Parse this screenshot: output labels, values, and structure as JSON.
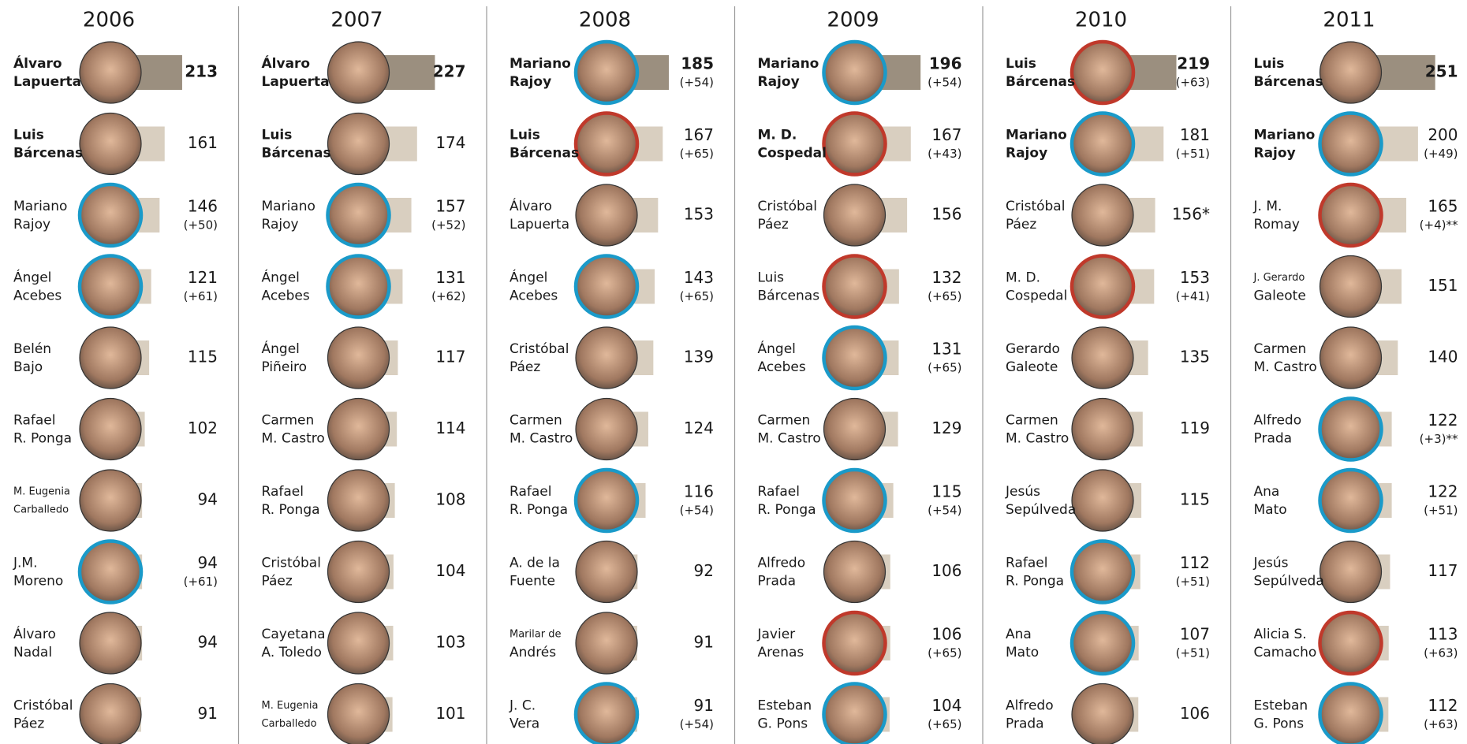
{
  "years": [
    {
      "year": "2006",
      "people": [
        {
          "name": [
            "Álvaro",
            "Lapuerta"
          ],
          "value": 213
        },
        {
          "name": [
            "Luis",
            "Bárcenas"
          ],
          "value": 161
        },
        {
          "name": [
            "Mariano",
            "Rajoy"
          ],
          "value": 146,
          "extra": "(+50)",
          "ring": "#1a9ac9"
        },
        {
          "name": [
            "Ángel",
            "Acebes"
          ],
          "value": 121,
          "extra": "(+61)",
          "ring": "#1a9ac9"
        },
        {
          "name": [
            "Belén",
            "Bajo"
          ],
          "value": 115
        },
        {
          "name": [
            "Rafael",
            "R. Ponga"
          ],
          "value": 102
        },
        {
          "name": [
            "M. Eugenia",
            "Carballedo"
          ],
          "value": 94
        },
        {
          "name": [
            "J.M.",
            "Moreno"
          ],
          "value": 94,
          "extra": "(+61)",
          "ring": "#1a9ac9"
        },
        {
          "name": [
            "Álvaro",
            "Nadal"
          ],
          "value": 94
        },
        {
          "name": [
            "Cristóbal",
            "Páez"
          ],
          "value": 91
        }
      ]
    },
    {
      "year": "2007",
      "people": [
        {
          "name": [
            "Álvaro",
            "Lapuerta"
          ],
          "value": 227
        },
        {
          "name": [
            "Luis",
            "Bárcenas"
          ],
          "value": 174
        },
        {
          "name": [
            "Mariano",
            "Rajoy"
          ],
          "value": 157,
          "extra": "(+52)",
          "ring": "#1a9ac9"
        },
        {
          "name": [
            "Ángel",
            "Acebes"
          ],
          "value": 131,
          "extra": "(+62)",
          "ring": "#1a9ac9"
        },
        {
          "name": [
            "Ángel",
            "Piñeiro"
          ],
          "value": 117
        },
        {
          "name": [
            "Carmen",
            "M. Castro"
          ],
          "value": 114
        },
        {
          "name": [
            "Rafael",
            "R. Ponga"
          ],
          "value": 108
        },
        {
          "name": [
            "Cristóbal",
            "Páez"
          ],
          "value": 104
        },
        {
          "name": [
            "Cayetana",
            "A. Toledo"
          ],
          "value": 103
        },
        {
          "name": [
            "M. Eugenia",
            "Carballedo"
          ],
          "value": 101
        }
      ]
    },
    {
      "year": "2008",
      "people": [
        {
          "name": [
            "Mariano",
            "Rajoy"
          ],
          "value": 185,
          "extra": "(+54)",
          "ring": "#1a9ac9"
        },
        {
          "name": [
            "Luis",
            "Bárcenas"
          ],
          "value": 167,
          "extra": "(+65)",
          "ring": "#c0392b"
        },
        {
          "name": [
            "Álvaro",
            "Lapuerta"
          ],
          "value": 153
        },
        {
          "name": [
            "Ángel",
            "Acebes"
          ],
          "value": 143,
          "extra": "(+65)",
          "ring": "#1a9ac9"
        },
        {
          "name": [
            "Cristóbal",
            "Páez"
          ],
          "value": 139
        },
        {
          "name": [
            "Carmen",
            "M. Castro"
          ],
          "value": 124
        },
        {
          "name": [
            "Rafael",
            "R. Ponga"
          ],
          "value": 116,
          "extra": "(+54)",
          "ring": "#1a9ac9"
        },
        {
          "name": [
            "A. de la",
            "Fuente"
          ],
          "value": 92
        },
        {
          "name": [
            "Marilar de",
            "Andrés"
          ],
          "value": 91
        },
        {
          "name": [
            "J. C.",
            "Vera"
          ],
          "value": 91,
          "extra": "(+54)",
          "ring": "#1a9ac9"
        }
      ]
    },
    {
      "year": "2009",
      "people": [
        {
          "name": [
            "Mariano",
            "Rajoy"
          ],
          "value": 196,
          "extra": "(+54)",
          "ring": "#1a9ac9"
        },
        {
          "name": [
            "M. D.",
            "Cospedal"
          ],
          "value": 167,
          "extra": "(+43)",
          "ring": "#c0392b"
        },
        {
          "name": [
            "Cristóbal",
            "Páez"
          ],
          "value": 156
        },
        {
          "name": [
            "Luis",
            "Bárcenas"
          ],
          "value": 132,
          "extra": "(+65)",
          "ring": "#c0392b"
        },
        {
          "name": [
            "Ángel",
            "Acebes"
          ],
          "value": 131,
          "extra": "(+65)",
          "ring": "#1a9ac9"
        },
        {
          "name": [
            "Carmen",
            "M. Castro"
          ],
          "value": 129
        },
        {
          "name": [
            "Rafael",
            "R. Ponga"
          ],
          "value": 115,
          "extra": "(+54)",
          "ring": "#1a9ac9"
        },
        {
          "name": [
            "Alfredo",
            "Prada"
          ],
          "value": 106
        },
        {
          "name": [
            "Javier",
            "Arenas"
          ],
          "value": 106,
          "extra": "(+65)",
          "ring": "#c0392b"
        },
        {
          "name": [
            "Esteban",
            "G. Pons"
          ],
          "value": 104,
          "extra": "(+65)",
          "ring": "#1a9ac9"
        }
      ]
    },
    {
      "year": "2010",
      "people": [
        {
          "name": [
            "Luis",
            "Bárcenas"
          ],
          "value": 219,
          "extra": "(+63)",
          "ring": "#c0392b"
        },
        {
          "name": [
            "Mariano",
            "Rajoy"
          ],
          "value": 181,
          "extra": "(+51)",
          "ring": "#1a9ac9"
        },
        {
          "name": [
            "Cristóbal",
            "Páez"
          ],
          "value": 156,
          "value_label": "156*"
        },
        {
          "name": [
            "M. D.",
            "Cospedal"
          ],
          "value": 153,
          "extra": "(+41)",
          "ring": "#c0392b"
        },
        {
          "name": [
            "Gerardo",
            "Galeote"
          ],
          "value": 135
        },
        {
          "name": [
            "Carmen",
            "M. Castro"
          ],
          "value": 119
        },
        {
          "name": [
            "Jesús",
            "Sepúlveda"
          ],
          "value": 115
        },
        {
          "name": [
            "Rafael",
            "R. Ponga"
          ],
          "value": 112,
          "extra": "(+51)",
          "ring": "#1a9ac9"
        },
        {
          "name": [
            "Ana",
            "Mato"
          ],
          "value": 107,
          "extra": "(+51)",
          "ring": "#1a9ac9"
        },
        {
          "name": [
            "Alfredo",
            "Prada"
          ],
          "value": 106
        }
      ]
    },
    {
      "year": "2011",
      "people": [
        {
          "name": [
            "Luis",
            "Bárcenas"
          ],
          "value": 251
        },
        {
          "name": [
            "Mariano",
            "Rajoy"
          ],
          "value": 200,
          "extra": "(+49)",
          "ring": "#1a9ac9"
        },
        {
          "name": [
            "J. M.",
            "Romay"
          ],
          "value": 165,
          "extra": "(+4)**",
          "ring": "#c0392b"
        },
        {
          "name": [
            "J. Gerardo",
            "Galeote"
          ],
          "value": 151
        },
        {
          "name": [
            "Carmen",
            "M. Castro"
          ],
          "value": 140
        },
        {
          "name": [
            "Alfredo",
            "Prada"
          ],
          "value": 122,
          "extra": "(+3)**",
          "ring": "#1a9ac9"
        },
        {
          "name": [
            "Ana",
            "Mato"
          ],
          "value": 122,
          "extra": "(+51)",
          "ring": "#1a9ac9"
        },
        {
          "name": [
            "Jesús",
            "Sepúlveda"
          ],
          "value": 117
        },
        {
          "name": [
            "Alicia S.",
            "Camacho"
          ],
          "value": 113,
          "extra": "(+63)",
          "ring": "#c0392b"
        },
        {
          "name": [
            "Esteban",
            "G. Pons"
          ],
          "value": 112,
          "extra": "(+63)",
          "ring": "#1a9ac9"
        }
      ]
    }
  ]
}
